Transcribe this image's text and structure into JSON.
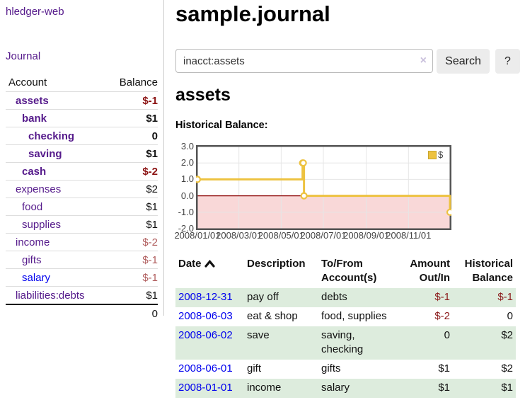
{
  "app": {
    "brand": "hledger-web"
  },
  "nav": {
    "journal": "Journal"
  },
  "sidebar": {
    "header": {
      "account": "Account",
      "balance": "Balance"
    },
    "accounts": [
      {
        "name": "assets",
        "indent": 1,
        "bold": true,
        "balance": "$-1",
        "balance_style": "neg-strong",
        "link_color": "purple"
      },
      {
        "name": "bank",
        "indent": 2,
        "bold": true,
        "balance": "$1",
        "balance_style": "pos",
        "link_color": "purple"
      },
      {
        "name": "checking",
        "indent": 3,
        "bold": true,
        "balance": "0",
        "balance_style": "pos",
        "link_color": "purple"
      },
      {
        "name": "saving",
        "indent": 3,
        "bold": true,
        "balance": "$1",
        "balance_style": "pos",
        "link_color": "purple"
      },
      {
        "name": "cash",
        "indent": 2,
        "bold": true,
        "balance": "$-2",
        "balance_style": "neg-strong",
        "link_color": "purple"
      },
      {
        "name": "expenses",
        "indent": 1,
        "bold": false,
        "balance": "$2",
        "balance_style": "pos",
        "link_color": "purple"
      },
      {
        "name": "food",
        "indent": 2,
        "bold": false,
        "balance": "$1",
        "balance_style": "pos",
        "link_color": "purple"
      },
      {
        "name": "supplies",
        "indent": 2,
        "bold": false,
        "balance": "$1",
        "balance_style": "pos",
        "link_color": "purple"
      },
      {
        "name": "income",
        "indent": 1,
        "bold": false,
        "balance": "$-2",
        "balance_style": "neg-muted",
        "link_color": "purple"
      },
      {
        "name": "gifts",
        "indent": 2,
        "bold": false,
        "balance": "$-1",
        "balance_style": "neg-muted",
        "link_color": "purple"
      },
      {
        "name": "salary",
        "indent": 2,
        "bold": false,
        "balance": "$-1",
        "balance_style": "neg-muted",
        "link_color": "blue"
      },
      {
        "name": "liabilities:debts",
        "indent": 1,
        "bold": false,
        "balance": "$1",
        "balance_style": "pos",
        "link_color": "purple"
      }
    ],
    "total": "0"
  },
  "header": {
    "title": "sample.journal"
  },
  "search": {
    "value": "inacct:assets",
    "clear_icon": "×",
    "button_label": "Search",
    "help_label": "?"
  },
  "account_page": {
    "title": "assets",
    "chart_heading": "Historical Balance:"
  },
  "chart_data": {
    "type": "line",
    "step": true,
    "title": "Historical Balance:",
    "series": [
      {
        "name": "$",
        "color": "#edc240",
        "points": [
          [
            "2008-01-01",
            1
          ],
          [
            "2008-06-01",
            2
          ],
          [
            "2008-06-02",
            2
          ],
          [
            "2008-06-03",
            0
          ],
          [
            "2008-12-31",
            -1
          ]
        ]
      }
    ],
    "x_domain": [
      "2008-01-01",
      "2008-12-31"
    ],
    "ylim": [
      -2,
      3
    ],
    "y_tick_labels": [
      "3.0",
      "2.0",
      "1.0",
      "0.0",
      "-1.0",
      "-2.0"
    ],
    "x_ticks": [
      {
        "date": "2008-01-01",
        "label": "2008/01/01"
      },
      {
        "date": "2008-03-01",
        "label": "2008/03/01"
      },
      {
        "date": "2008-05-01",
        "label": "2008/05/01"
      },
      {
        "date": "2008-07-01",
        "label": "2008/07/01"
      },
      {
        "date": "2008-09-01",
        "label": "2008/09/01"
      },
      {
        "date": "2008-11-01",
        "label": "2008/11/01"
      }
    ],
    "grid": true,
    "legend_position": "top-right",
    "legend_label": "$",
    "zero_line_color": "#8b0000",
    "negative_region_color": "#f9d8d8",
    "border_color": "#545454",
    "grid_color": "#e6e6e6"
  },
  "register": {
    "columns": [
      "Date",
      "Description",
      "To/From Account(s)",
      "Amount Out/In",
      "Historical Balance"
    ],
    "sort_icon": "chevron-up",
    "rows": [
      {
        "date": "2008-12-31",
        "description": "pay off",
        "accounts": "debts",
        "amount": "$-1",
        "amount_neg": true,
        "balance": "$-1",
        "balance_neg": true,
        "shaded": true
      },
      {
        "date": "2008-06-03",
        "description": "eat & shop",
        "accounts": "food, supplies",
        "amount": "$-2",
        "amount_neg": true,
        "balance": "0",
        "balance_neg": false,
        "shaded": false
      },
      {
        "date": "2008-06-02",
        "description": "save",
        "accounts": "saving, checking",
        "amount": "0",
        "amount_neg": false,
        "balance": "$2",
        "balance_neg": false,
        "shaded": true
      },
      {
        "date": "2008-06-01",
        "description": "gift",
        "accounts": "gifts",
        "amount": "$1",
        "amount_neg": false,
        "balance": "$2",
        "balance_neg": false,
        "shaded": false
      },
      {
        "date": "2008-01-01",
        "description": "income",
        "accounts": "salary",
        "amount": "$1",
        "amount_neg": false,
        "balance": "$1",
        "balance_neg": false,
        "shaded": true
      }
    ]
  },
  "colors": {
    "visited_link_purple": "#551a8b",
    "link_blue": "#0000ee",
    "negative_strong": "#8b1212",
    "negative_muted": "#b05d5d",
    "row_shade_green": "#ddecdd",
    "chart_line_gold": "#edc240",
    "chart_negative_fill": "#f9d8d8",
    "chart_zero_line": "#8b0000"
  }
}
